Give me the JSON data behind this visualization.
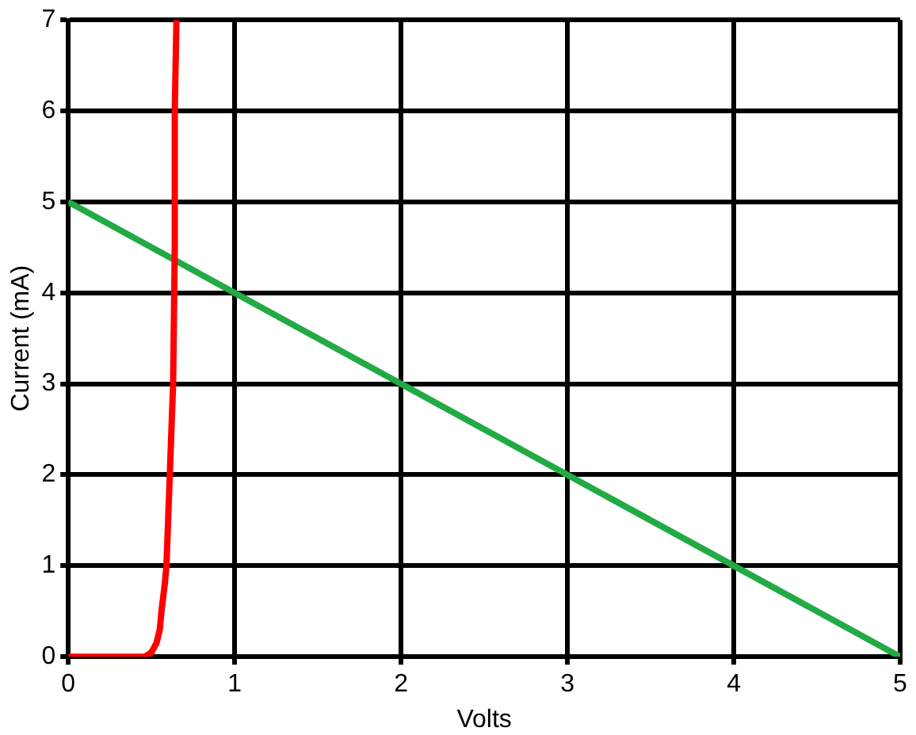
{
  "chart_data": {
    "type": "line",
    "xlabel": "Volts",
    "ylabel": "Current (mA)",
    "series": [
      {
        "color": "#ff0000",
        "x": [
          0,
          0.3,
          0.46,
          0.5,
          0.53,
          0.55,
          0.56,
          0.58,
          0.59,
          0.6,
          0.61,
          0.62,
          0.63,
          0.64,
          0.64,
          0.65
        ],
        "values": [
          0,
          0,
          0,
          0.05,
          0.15,
          0.3,
          0.5,
          0.8,
          1,
          1.5,
          2,
          2.5,
          3,
          4.5,
          6,
          7
        ]
      },
      {
        "color": "#22aa44",
        "x": [
          0,
          5
        ],
        "values": [
          5,
          0
        ]
      }
    ],
    "xlim": [
      0,
      5
    ],
    "ylim": [
      0,
      7
    ],
    "xticks": [
      0,
      1,
      2,
      3,
      4,
      5
    ],
    "yticks": [
      0,
      1,
      2,
      3,
      4,
      5,
      6,
      7
    ],
    "grid": true,
    "legend": false,
    "marker": "none",
    "line_style": "solid"
  }
}
